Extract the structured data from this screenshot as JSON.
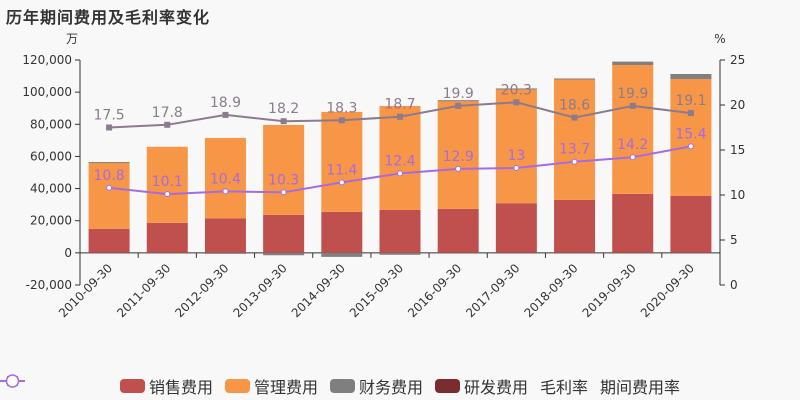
{
  "title": "历年期间费用及毛利率变化",
  "chart_data": {
    "type": "bar",
    "title": "历年期间费用及毛利率变化",
    "left_unit": "万",
    "right_unit": "%",
    "categories": [
      "2010-09-30",
      "2011-09-30",
      "2012-09-30",
      "2013-09-30",
      "2014-09-30",
      "2015-09-30",
      "2016-09-30",
      "2017-09-30",
      "2018-09-30",
      "2019-09-30",
      "2020-09-30"
    ],
    "left_axis": {
      "min": -20000,
      "max": 120000,
      "ticks": [
        "-20,000",
        "0",
        "20,000",
        "40,000",
        "60,000",
        "80,000",
        "100,000",
        "120,000"
      ]
    },
    "right_axis": {
      "min": 0,
      "max": 25,
      "ticks": [
        "0",
        "5",
        "10",
        "15",
        "20",
        "25"
      ]
    },
    "grid": false,
    "legend_position": "bottom",
    "series": [
      {
        "name": "销售费用",
        "kind": "bar",
        "color": "#c0504d",
        "values": [
          15000,
          18700,
          21500,
          23600,
          25500,
          26700,
          27400,
          30900,
          33000,
          36700,
          35400
        ]
      },
      {
        "name": "管理费用",
        "kind": "bar",
        "color": "#f79646",
        "values": [
          41000,
          47300,
          50000,
          56000,
          62200,
          64700,
          67300,
          70900,
          75200,
          80200,
          72800
        ]
      },
      {
        "name": "财务费用",
        "kind": "bar",
        "color": "#7f7f7f",
        "values": [
          500,
          0,
          -300,
          -1500,
          -2500,
          -1200,
          300,
          500,
          300,
          2100,
          3100
        ]
      },
      {
        "name": "研发费用",
        "kind": "bar",
        "color": "#7b2c2c",
        "values": [
          0,
          0,
          0,
          0,
          0,
          0,
          0,
          0,
          0,
          0,
          0
        ]
      },
      {
        "name": "毛利率",
        "kind": "line",
        "axis": "right",
        "color": "#8c7b8f",
        "values": [
          17.5,
          17.8,
          18.9,
          18.2,
          18.3,
          18.7,
          19.9,
          20.3,
          18.6,
          19.9,
          19.1
        ]
      },
      {
        "name": "期间费用率",
        "kind": "line",
        "axis": "right",
        "color": "#a66be0",
        "values": [
          10.8,
          10.1,
          10.4,
          10.3,
          11.4,
          12.4,
          12.9,
          13,
          13.7,
          14.2,
          15.4
        ]
      }
    ]
  }
}
